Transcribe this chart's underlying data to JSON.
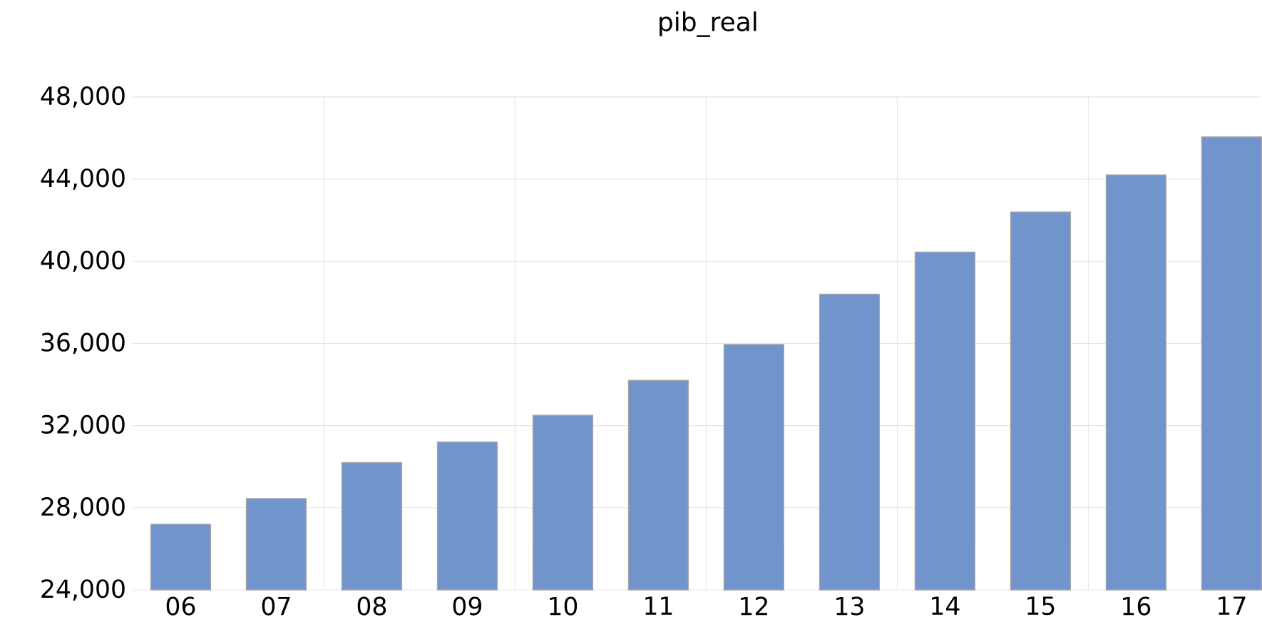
{
  "chart_data": {
    "type": "bar",
    "title": "pib_real",
    "categories": [
      "06",
      "07",
      "08",
      "09",
      "10",
      "11",
      "12",
      "13",
      "14",
      "15",
      "16",
      "17"
    ],
    "values": [
      27200,
      28450,
      30200,
      31200,
      32500,
      34200,
      35950,
      38400,
      40450,
      42400,
      44200,
      46050
    ],
    "color": "#7294cc",
    "ylim": [
      24000,
      48000
    ],
    "yticks": [
      {
        "value": 24000,
        "label": "24,000"
      },
      {
        "value": 28000,
        "label": "28,000"
      },
      {
        "value": 32000,
        "label": "32,000"
      },
      {
        "value": 36000,
        "label": "36,000"
      },
      {
        "value": 40000,
        "label": "40,000"
      },
      {
        "value": 44000,
        "label": "44,000"
      },
      {
        "value": 48000,
        "label": "48,000"
      }
    ],
    "grid": true
  }
}
